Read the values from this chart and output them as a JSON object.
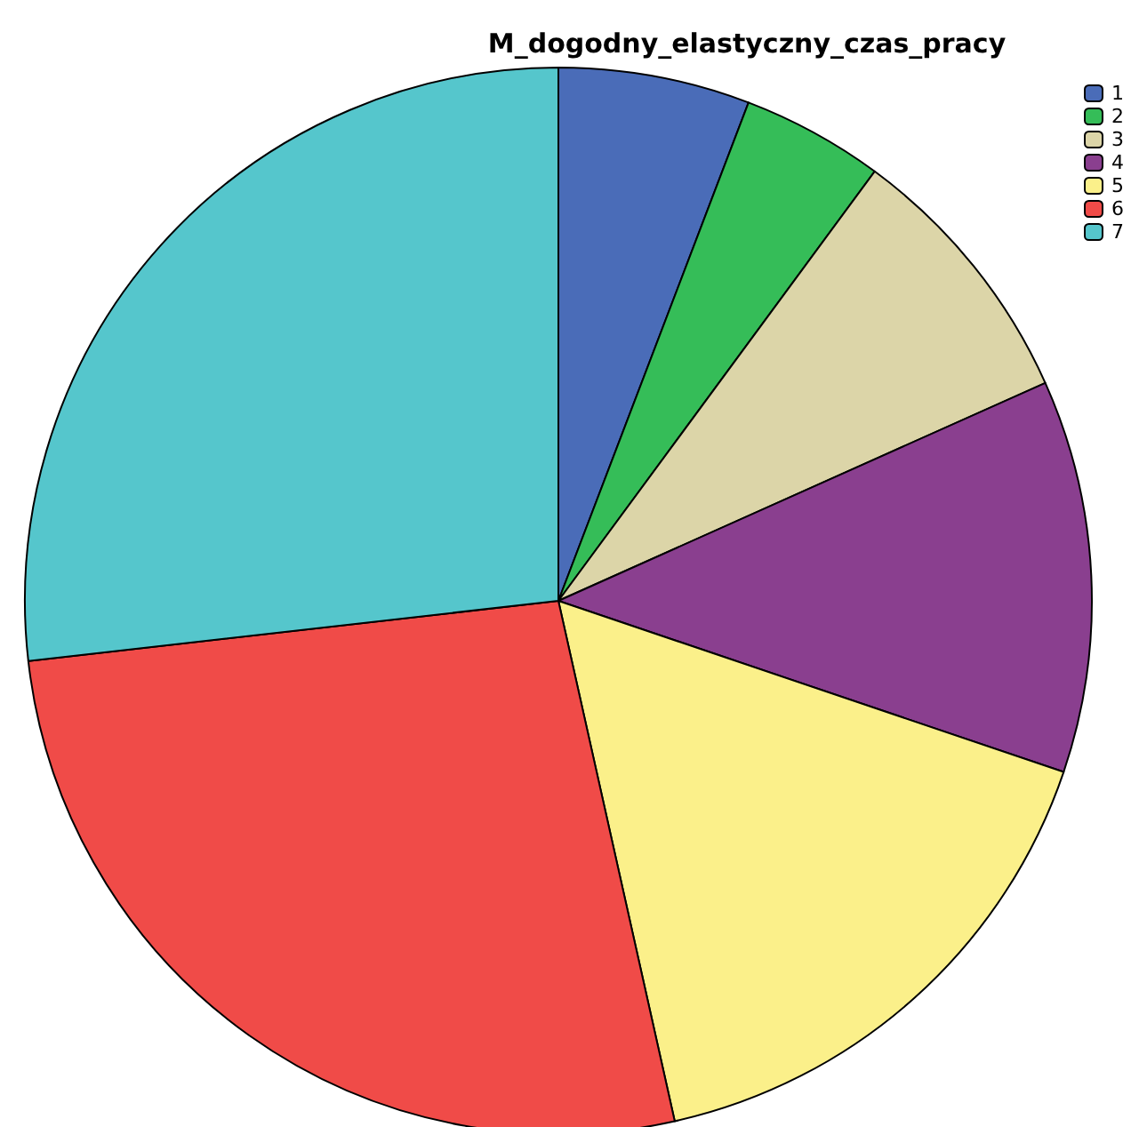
{
  "chart_data": {
    "type": "pie",
    "title": "M_dogodny_elastyczny_czas_pracy",
    "categories": [
      "1",
      "2",
      "3",
      "4",
      "5",
      "6",
      "7"
    ],
    "values": [
      5.8,
      4.3,
      8.2,
      11.9,
      16.3,
      26.7,
      26.8
    ],
    "colors": [
      "#4a6cb8",
      "#35bd58",
      "#dcd5a8",
      "#8a3f8f",
      "#fbf08a",
      "#f04b48",
      "#55c6cc"
    ],
    "legend": "top right"
  }
}
